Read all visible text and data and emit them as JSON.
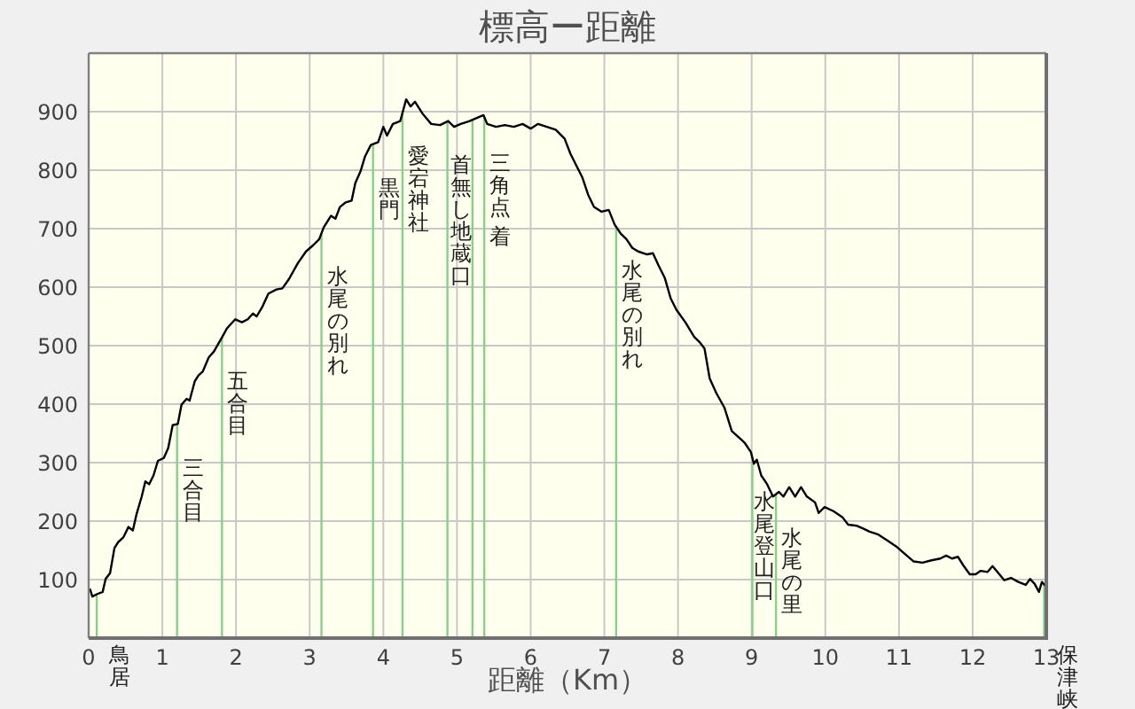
{
  "chart_data": {
    "type": "line",
    "title": "標高ー距離",
    "xlabel": "距離（Km）",
    "color": "#000000",
    "x": [
      0.02,
      0.05,
      0.11,
      0.19,
      0.23,
      0.29,
      0.35,
      0.4,
      0.47,
      0.54,
      0.6,
      0.65,
      0.72,
      0.77,
      0.82,
      0.88,
      0.94,
      1.02,
      1.08,
      1.14,
      1.21,
      1.26,
      1.33,
      1.37,
      1.44,
      1.49,
      1.55,
      1.63,
      1.7,
      1.8,
      1.88,
      1.99,
      2.08,
      2.16,
      2.23,
      2.28,
      2.36,
      2.44,
      2.55,
      2.63,
      2.72,
      2.84,
      2.95,
      3.05,
      3.13,
      3.19,
      3.29,
      3.35,
      3.41,
      3.49,
      3.57,
      3.62,
      3.69,
      3.75,
      3.83,
      3.93,
      4.0,
      4.05,
      4.13,
      4.23,
      4.31,
      4.37,
      4.43,
      4.53,
      4.65,
      4.77,
      4.88,
      4.96,
      5.05,
      5.17,
      5.36,
      5.41,
      5.53,
      5.65,
      5.77,
      5.89,
      6.0,
      6.1,
      6.22,
      6.34,
      6.46,
      6.54,
      6.62,
      6.7,
      6.78,
      6.86,
      6.96,
      7.06,
      7.14,
      7.22,
      7.3,
      7.38,
      7.46,
      7.58,
      7.66,
      7.74,
      7.82,
      7.9,
      7.98,
      8.1,
      8.22,
      8.3,
      8.36,
      8.43,
      8.52,
      8.63,
      8.73,
      8.87,
      8.91,
      8.99,
      9.03,
      9.07,
      9.13,
      9.21,
      9.29,
      9.37,
      9.43,
      9.51,
      9.59,
      9.67,
      9.75,
      9.86,
      9.91,
      9.99,
      10.11,
      10.23,
      10.31,
      10.43,
      10.52,
      10.6,
      10.72,
      10.84,
      10.96,
      11.06,
      11.2,
      11.32,
      11.44,
      11.56,
      11.64,
      11.72,
      11.8,
      11.88,
      11.96,
      12.04,
      12.11,
      12.2,
      12.27,
      12.35,
      12.43,
      12.52,
      12.62,
      12.72,
      12.78,
      12.84,
      12.9,
      12.94,
      12.99
    ],
    "values": [
      83,
      71,
      75,
      79,
      101,
      111,
      154,
      164,
      172,
      190,
      184,
      212,
      242,
      268,
      263,
      278,
      303,
      308,
      325,
      364,
      366,
      399,
      409,
      406,
      439,
      449,
      456,
      480,
      490,
      512,
      530,
      545,
      540,
      545,
      555,
      550,
      567,
      589,
      596,
      598,
      614,
      641,
      661,
      672,
      682,
      702,
      722,
      717,
      737,
      745,
      748,
      778,
      798,
      823,
      843,
      848,
      874,
      859,
      879,
      884,
      921,
      909,
      917,
      897,
      879,
      877,
      884,
      874,
      879,
      884,
      894,
      879,
      874,
      877,
      874,
      879,
      871,
      879,
      874,
      869,
      854,
      828,
      808,
      788,
      758,
      737,
      729,
      732,
      707,
      692,
      682,
      667,
      661,
      656,
      658,
      636,
      616,
      581,
      561,
      540,
      515,
      505,
      495,
      444,
      419,
      394,
      354,
      338,
      333,
      318,
      298,
      305,
      278,
      263,
      242,
      250,
      242,
      258,
      242,
      258,
      242,
      232,
      214,
      224,
      217,
      207,
      194,
      192,
      187,
      182,
      177,
      167,
      157,
      146,
      131,
      129,
      133,
      136,
      141,
      136,
      139,
      123,
      109,
      109,
      115,
      113,
      123,
      111,
      99,
      103,
      96,
      91,
      101,
      93,
      79,
      96,
      89
    ],
    "xlim": [
      0,
      13
    ],
    "ylim": [
      0,
      1000
    ],
    "xticks": [
      0,
      1,
      2,
      3,
      4,
      5,
      6,
      7,
      8,
      9,
      10,
      11,
      12,
      13
    ],
    "yticks": [
      100,
      200,
      300,
      400,
      500,
      600,
      700,
      800,
      900
    ],
    "grid": true,
    "ref_lines": [
      {
        "axis": "x",
        "value": 0.11,
        "label": "鳥居",
        "color": "#88d088"
      },
      {
        "axis": "x",
        "value": 1.2,
        "label": "三合目",
        "color": "#88d088"
      },
      {
        "axis": "x",
        "value": 1.81,
        "label": "五合目",
        "color": "#88d088"
      },
      {
        "axis": "x",
        "value": 3.16,
        "label": "水尾の別れ",
        "color": "#88d088"
      },
      {
        "axis": "x",
        "value": 3.86,
        "label": "黒門",
        "color": "#88d088"
      },
      {
        "axis": "x",
        "value": 4.26,
        "label": "愛宕神社",
        "color": "#88d088"
      },
      {
        "axis": "x",
        "value": 4.87,
        "label": "首無し地蔵口",
        "color": "#88d088"
      },
      {
        "axis": "x",
        "value": 5.21,
        "label": "三角点",
        "color": "#88d088"
      },
      {
        "axis": "x",
        "value": 5.37,
        "label": "着",
        "color": "#88d088"
      },
      {
        "axis": "x",
        "value": 7.16,
        "label": "水尾の別れ",
        "color": "#88d088"
      },
      {
        "axis": "x",
        "value": 9.01,
        "label": "水尾登山口",
        "color": "#88d088"
      },
      {
        "axis": "x",
        "value": 9.33,
        "label": "水尾の里",
        "color": "#88d088"
      },
      {
        "axis": "x",
        "value": 12.97,
        "label": "保津峡",
        "color": "#88d088"
      }
    ]
  }
}
